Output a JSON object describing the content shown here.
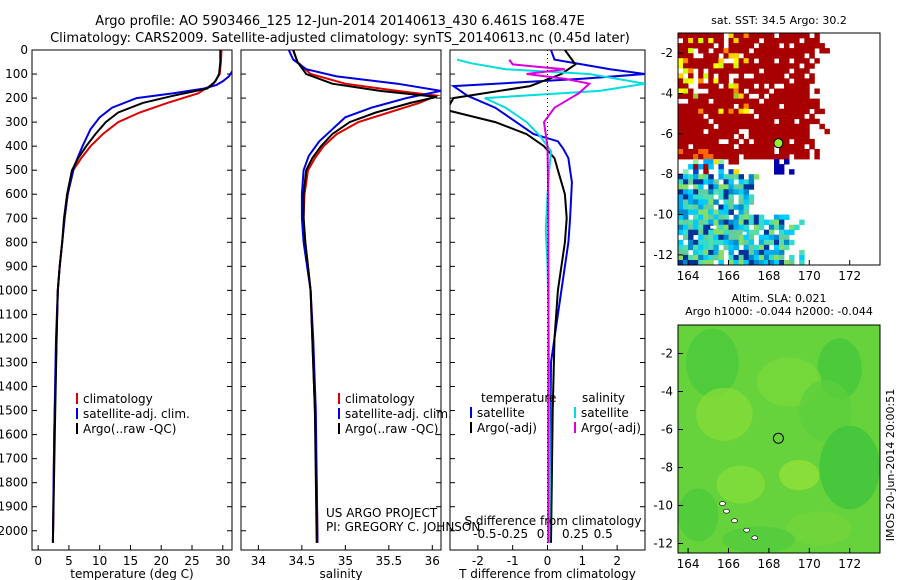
{
  "title_line1": "Argo profile: AO 5903466_125 12-Jun-2014 20140613_430 6.461S 168.47E",
  "title_line2": "Climatology: CARS2009. Satellite-adjusted climatology: synTS_20140613.nc (0.45d later)",
  "credit_line1": "US ARGO PROJECT",
  "credit_line2": "PI: GREGORY C. JOHNSON",
  "side_stamp": "IMOS 20-Jun-2014 20:00:51",
  "colors": {
    "climatology": "#dd0000",
    "satellite": "#0000dd",
    "argo": "#000000",
    "cyan": "#00dddd",
    "magenta": "#dd00dd"
  },
  "chart_data": [
    {
      "id": "temperature",
      "type": "line",
      "xlabel": "temperature (deg C)",
      "ylabel": "",
      "xlim": [
        -1,
        31.5
      ],
      "ylim": [
        2080,
        0
      ],
      "xticks": [
        0,
        5,
        10,
        15,
        20,
        25,
        30
      ],
      "xtick_labels": [
        "0",
        "5",
        "10",
        "15",
        "20",
        "25",
        "30"
      ],
      "yticks": [
        0,
        100,
        200,
        300,
        400,
        500,
        600,
        700,
        800,
        900,
        1000,
        1100,
        1200,
        1300,
        1400,
        1500,
        1600,
        1700,
        1800,
        1900,
        2000
      ],
      "ytick_labels": [
        "0",
        "100",
        "200",
        "300",
        "400",
        "500",
        "600",
        "700",
        "800",
        "900",
        "1000",
        "1100",
        "1200",
        "1300",
        "1400",
        "1500",
        "1600",
        "1700",
        "1800",
        "1900",
        "2000"
      ],
      "legend": [
        "climatology",
        "satellite-adj. clim.",
        "Argo(..raw -QC)"
      ],
      "series": [
        {
          "name": "climatology",
          "color": "#dd0000",
          "x": [
            29.8,
            29.7,
            29.5,
            28.5,
            26,
            21,
            16.5,
            13,
            10.5,
            8.5,
            7,
            5.7,
            4.8,
            4.3,
            3.9,
            3.5,
            3.2,
            3,
            2.8,
            2.6,
            2.4
          ],
          "y": [
            0,
            50,
            100,
            140,
            180,
            220,
            260,
            300,
            350,
            400,
            450,
            500,
            600,
            700,
            800,
            900,
            1000,
            1200,
            1400,
            1600,
            2050
          ]
        },
        {
          "name": "satellite-adj. clim.",
          "color": "#0000dd",
          "x": [
            32,
            31.5,
            31,
            30,
            29,
            27,
            22,
            16,
            12,
            10,
            8.5,
            7.2,
            5.9,
            4.8,
            4.3,
            3.9,
            3.5,
            3.2,
            2.9,
            2.6,
            2.4
          ],
          "y": [
            60,
            90,
            110,
            130,
            145,
            160,
            180,
            200,
            240,
            280,
            330,
            400,
            480,
            600,
            700,
            800,
            900,
            1000,
            1200,
            1600,
            2050
          ]
        },
        {
          "name": "Argo(..raw -QC)",
          "color": "#000000",
          "x": [
            29.6,
            29.6,
            29.4,
            28.8,
            27.5,
            22,
            17,
            13,
            11,
            9.3,
            7.8,
            6.5,
            5.5,
            4.7,
            4.2,
            3.9,
            3.5,
            3.2,
            3,
            2.7,
            2.4
          ],
          "y": [
            0,
            50,
            100,
            130,
            160,
            190,
            220,
            260,
            300,
            350,
            400,
            450,
            500,
            600,
            700,
            800,
            900,
            1000,
            1200,
            1600,
            2050
          ]
        }
      ]
    },
    {
      "id": "salinity",
      "type": "line",
      "xlabel": "salinity",
      "ylabel": "",
      "xlim": [
        33.8,
        36.1
      ],
      "ylim": [
        2080,
        0
      ],
      "xticks": [
        34,
        34.5,
        35,
        35.5,
        36
      ],
      "xtick_labels": [
        "34",
        "34.5",
        "35",
        "35.5",
        "36"
      ],
      "legend": [
        "climatology",
        "satellite-adj. clim.",
        "Argo(..raw -QC)"
      ],
      "series": [
        {
          "name": "climatology",
          "color": "#dd0000",
          "x": [
            34.4,
            34.45,
            34.6,
            35,
            35.6,
            36.05,
            35.85,
            35.5,
            35.15,
            34.9,
            34.75,
            34.65,
            34.57,
            34.53,
            34.52,
            34.54,
            34.57,
            34.6,
            34.62,
            34.65,
            34.67,
            34.68
          ],
          "y": [
            0,
            50,
            100,
            140,
            170,
            190,
            220,
            260,
            300,
            350,
            400,
            450,
            500,
            600,
            700,
            800,
            900,
            1000,
            1200,
            1500,
            1800,
            2050
          ]
        },
        {
          "name": "satellite-adj. clim.",
          "color": "#0000dd",
          "x": [
            34.35,
            34.4,
            34.55,
            34.9,
            35.6,
            36.1,
            35.7,
            35.3,
            35,
            34.85,
            34.7,
            34.58,
            34.52,
            34.5,
            34.5,
            34.52,
            34.56,
            34.6,
            34.63,
            34.66,
            34.68
          ],
          "y": [
            0,
            40,
            80,
            110,
            140,
            170,
            200,
            240,
            280,
            330,
            380,
            440,
            500,
            600,
            700,
            800,
            900,
            1000,
            1200,
            1500,
            2050
          ]
        },
        {
          "name": "Argo(..raw -QC)",
          "color": "#000000",
          "x": [
            34.4,
            34.45,
            34.55,
            34.85,
            35.4,
            36.05,
            35.75,
            35.35,
            35.05,
            34.85,
            34.72,
            34.62,
            34.55,
            34.52,
            34.52,
            34.54,
            34.57,
            34.6,
            34.62,
            34.65,
            34.67
          ],
          "y": [
            0,
            50,
            100,
            140,
            170,
            195,
            220,
            260,
            300,
            350,
            400,
            450,
            500,
            600,
            700,
            800,
            900,
            1000,
            1200,
            1500,
            2050
          ]
        }
      ]
    },
    {
      "id": "difference",
      "type": "line",
      "xlabel": "T difference from climatology",
      "xlabel_top": "S difference from climatology",
      "xlim": [
        -2.8,
        2.8
      ],
      "ylim": [
        2080,
        0
      ],
      "xticks": [
        -2,
        -1,
        0,
        1,
        2
      ],
      "xtick_labels": [
        "-2",
        "-1",
        "0",
        "1",
        "2"
      ],
      "sticks": [
        -1.8,
        -1.0,
        -0.2,
        0.8,
        1.6
      ],
      "stick_labels": [
        "-0.5",
        "-0.25",
        "0",
        "0.25",
        "0.5"
      ],
      "legend_headers": [
        "temperature",
        "salinity"
      ],
      "legend": [
        "satellite",
        "Argo(-adj)",
        "satellite",
        "Argo(-adj)"
      ],
      "series": [
        {
          "name": "T satellite",
          "color": "#0000dd",
          "x": [
            0.1,
            0.2,
            1.8,
            2.8,
            1,
            -2.7,
            -2.3,
            -1.5,
            -0.9,
            -0.4,
            0.3,
            0.45,
            0.6,
            0.65,
            0.7,
            0.65,
            0.6,
            0.5,
            0.3,
            0.1,
            0.05
          ],
          "y": [
            0,
            40,
            80,
            100,
            120,
            150,
            190,
            240,
            300,
            350,
            380,
            410,
            450,
            500,
            550,
            700,
            800,
            900,
            1100,
            1300,
            2050
          ]
        },
        {
          "name": "T Argo(-adj)",
          "color": "#000000",
          "x": [
            0.5,
            0.8,
            0.4,
            -0.5,
            -2.7,
            -2.9,
            -1.5,
            -0.6,
            -0.1,
            0.2,
            0.3,
            0.4,
            0.5,
            0.55,
            0.5,
            0.4,
            0.3,
            0.2,
            0.15,
            0.1
          ],
          "y": [
            0,
            60,
            100,
            150,
            200,
            250,
            300,
            350,
            400,
            450,
            500,
            550,
            600,
            700,
            800,
            900,
            1000,
            1200,
            1500,
            2050
          ]
        },
        {
          "name": "S satellite",
          "color": "#00dddd",
          "x": [
            -2.6,
            -2.2,
            -1.2,
            1.2,
            2.8,
            1.5,
            -1.8,
            -1.2,
            -0.6,
            -0.2,
            0.1,
            0.05,
            0,
            -0.05,
            0,
            0.03,
            0.05,
            0.07,
            0.05
          ],
          "y": [
            40,
            55,
            80,
            100,
            140,
            170,
            200,
            240,
            300,
            360,
            420,
            500,
            600,
            750,
            900,
            1100,
            1400,
            1800,
            2050
          ]
        },
        {
          "name": "S Argo(-adj)",
          "color": "#dd00dd",
          "x": [
            -1.1,
            -1.0,
            -0.3,
            0.5,
            -0.6,
            0.5,
            1.2,
            0.9,
            0.2,
            -0.1,
            0,
            0.02,
            0.03,
            0.02,
            0.02
          ],
          "y": [
            40,
            60,
            70,
            80,
            100,
            120,
            140,
            180,
            240,
            300,
            400,
            600,
            1000,
            1600,
            2050
          ]
        }
      ]
    },
    {
      "id": "sst_map",
      "type": "heatmap",
      "title": "sat. SST: 34.5 Argo: 30.2",
      "xlim": [
        163.5,
        173.5
      ],
      "ylim": [
        -12.5,
        -1
      ],
      "xticks": [
        164,
        166,
        168,
        170,
        172
      ],
      "xtick_labels": [
        "164",
        "166",
        "168",
        "170",
        "172"
      ],
      "yticks": [
        -2,
        -4,
        -6,
        -8,
        -10,
        -12
      ],
      "ytick_labels": [
        "-2",
        "-4",
        "-6",
        "-8",
        "-10",
        "-12"
      ],
      "argo_position": [
        168.47,
        -6.461
      ]
    },
    {
      "id": "sla_map",
      "type": "heatmap",
      "title": "Altim. SLA: 0.021",
      "subtitle": "Argo h1000: -0.044 h2000: -0.044",
      "xlim": [
        163.5,
        173.5
      ],
      "ylim": [
        -12.5,
        -0.5
      ],
      "xticks": [
        164,
        166,
        168,
        170,
        172
      ],
      "xtick_labels": [
        "164",
        "166",
        "168",
        "170",
        "172"
      ],
      "yticks": [
        -2,
        -4,
        -6,
        -8,
        -10,
        -12
      ],
      "ytick_labels": [
        "-2",
        "-4",
        "-6",
        "-8",
        "-10",
        "-12"
      ],
      "argo_position": [
        168.47,
        -6.461
      ]
    }
  ]
}
